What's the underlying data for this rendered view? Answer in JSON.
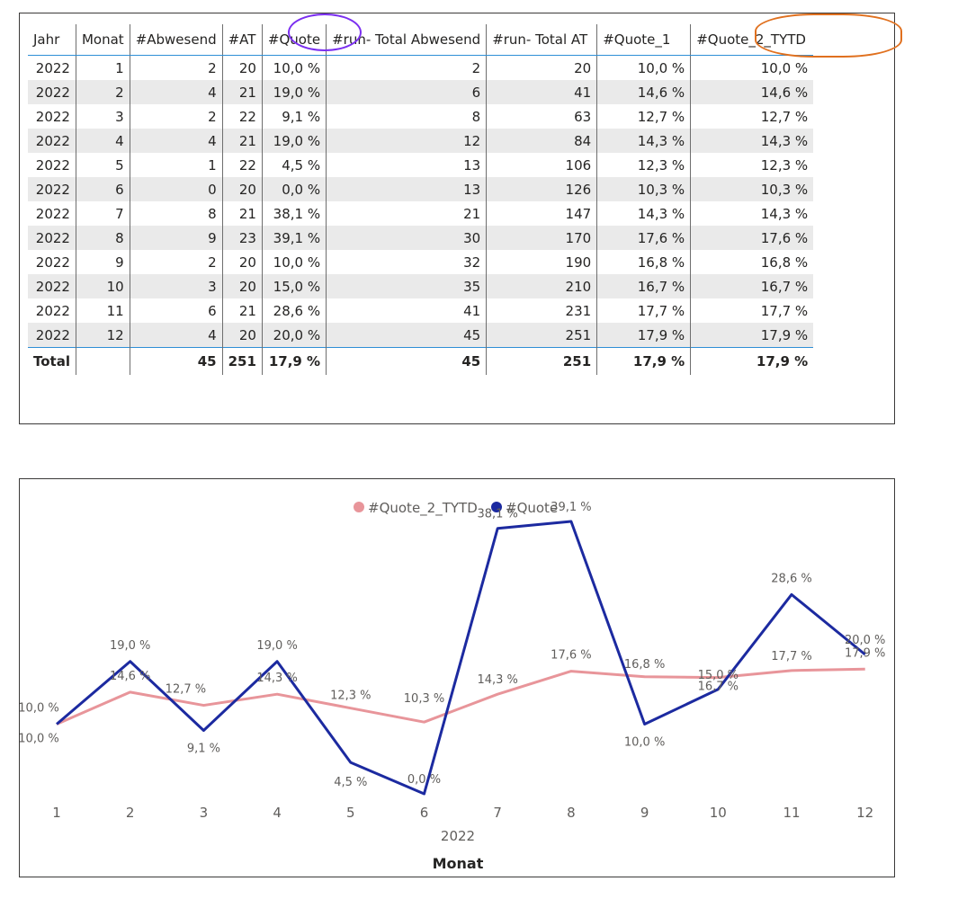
{
  "table": {
    "columns": [
      "Jahr",
      "Monat",
      "#Abwesend",
      "#AT",
      "#Quote",
      "#run- Total Abwesend",
      "#run- Total AT",
      "#Quote_1",
      "#Quote_2_TYTD"
    ],
    "rows": [
      [
        "2022",
        "1",
        "2",
        "20",
        "10,0 %",
        "2",
        "20",
        "10,0 %",
        "10,0 %"
      ],
      [
        "2022",
        "2",
        "4",
        "21",
        "19,0 %",
        "6",
        "41",
        "14,6 %",
        "14,6 %"
      ],
      [
        "2022",
        "3",
        "2",
        "22",
        "9,1 %",
        "8",
        "63",
        "12,7 %",
        "12,7 %"
      ],
      [
        "2022",
        "4",
        "4",
        "21",
        "19,0 %",
        "12",
        "84",
        "14,3 %",
        "14,3 %"
      ],
      [
        "2022",
        "5",
        "1",
        "22",
        "4,5 %",
        "13",
        "106",
        "12,3 %",
        "12,3 %"
      ],
      [
        "2022",
        "6",
        "0",
        "20",
        "0,0 %",
        "13",
        "126",
        "10,3 %",
        "10,3 %"
      ],
      [
        "2022",
        "7",
        "8",
        "21",
        "38,1 %",
        "21",
        "147",
        "14,3 %",
        "14,3 %"
      ],
      [
        "2022",
        "8",
        "9",
        "23",
        "39,1 %",
        "30",
        "170",
        "17,6 %",
        "17,6 %"
      ],
      [
        "2022",
        "9",
        "2",
        "20",
        "10,0 %",
        "32",
        "190",
        "16,8 %",
        "16,8 %"
      ],
      [
        "2022",
        "10",
        "3",
        "20",
        "15,0 %",
        "35",
        "210",
        "16,7 %",
        "16,7 %"
      ],
      [
        "2022",
        "11",
        "6",
        "21",
        "28,6 %",
        "41",
        "231",
        "17,7 %",
        "17,7 %"
      ],
      [
        "2022",
        "12",
        "4",
        "20",
        "20,0 %",
        "45",
        "251",
        "17,9 %",
        "17,9 %"
      ]
    ],
    "total": [
      "Total",
      "",
      "45",
      "251",
      "17,9 %",
      "45",
      "251",
      "17,9 %",
      "17,9 %"
    ]
  },
  "chart_data": {
    "type": "line",
    "x": [
      "1",
      "2",
      "3",
      "4",
      "5",
      "6",
      "7",
      "8",
      "9",
      "10",
      "11",
      "12"
    ],
    "x_group_label": "2022",
    "xlabel": "Monat",
    "legend_position": "top-center",
    "series": [
      {
        "name": "#Quote_2_TYTD",
        "color": "#e8959a",
        "values": [
          10.0,
          14.6,
          12.7,
          14.3,
          12.3,
          10.3,
          14.3,
          17.6,
          16.8,
          16.7,
          17.7,
          17.9
        ],
        "labels": [
          "10,0 %",
          "14,6 %",
          "12,7 %",
          "14,3 %",
          "12,3 %",
          "10,3 %",
          "14,3 %",
          "17,6 %",
          "16,8 %",
          "16,7 %",
          "17,7 %",
          "17,9 %"
        ]
      },
      {
        "name": "#Quote",
        "color": "#1c2aa0",
        "values": [
          10.0,
          19.0,
          9.1,
          19.0,
          4.5,
          0.0,
          38.1,
          39.1,
          10.0,
          15.0,
          28.6,
          20.0
        ],
        "labels": [
          "10,0 %",
          "19,0 %",
          "9,1 %",
          "19,0 %",
          "4,5 %",
          "0,0 %",
          "38,1 %",
          "39,1 %",
          "10,0 %",
          "15,0 %",
          "28,6 %",
          "20,0 %"
        ]
      }
    ],
    "ylim": [
      0,
      40
    ]
  }
}
